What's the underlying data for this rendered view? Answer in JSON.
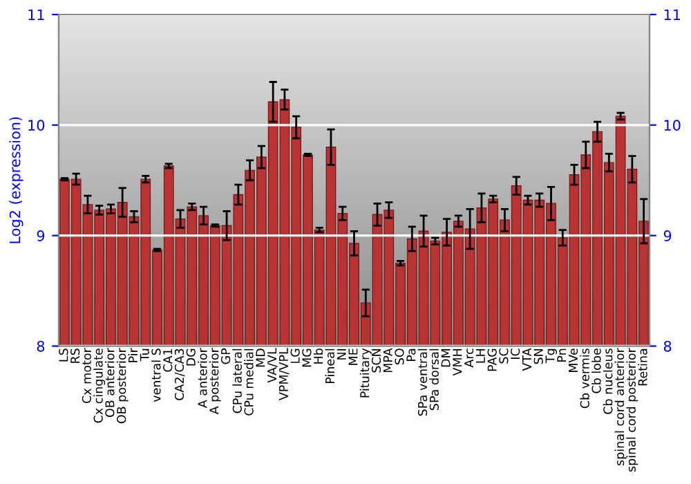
{
  "chart_data": {
    "type": "bar",
    "ylabel": "Log2 (expression)",
    "categories": [
      "LS",
      "RS",
      "Cx motor",
      "Cx cingulate",
      "OB anterior",
      "OB posterior",
      "Pir",
      "Tu",
      "ventral S",
      "CA1",
      "CA2/CA3",
      "DG",
      "A anterior",
      "A posterior",
      "GP",
      "CPu lateral",
      "CPu medial",
      "MD",
      "VA/VL",
      "VPM/VPL",
      "LG",
      "MG",
      "Hb",
      "Pineal",
      "NI",
      "ME",
      "Pituitary",
      "SCN",
      "MPA",
      "SO",
      "Pa",
      "SPa ventral",
      "SPa dorsal",
      "DM",
      "VMH",
      "Arc",
      "LH",
      "PAG",
      "SC",
      "IC",
      "VTA",
      "SN",
      "Tg",
      "Pn",
      "MVe",
      "Cb vermis",
      "Cb lobe",
      "Cb nucleus",
      "spinal cord anterior",
      "spinal cord posterior",
      "Retina"
    ],
    "series": [
      {
        "color": "#b83434",
        "values": [
          9.51,
          9.51,
          9.28,
          9.23,
          9.24,
          9.3,
          9.17,
          9.51,
          8.87,
          9.63,
          9.15,
          9.26,
          9.18,
          9.09,
          9.09,
          9.37,
          9.59,
          9.71,
          10.21,
          10.23,
          9.98,
          9.73,
          9.05,
          9.8,
          9.2,
          8.93,
          8.39,
          9.19,
          9.23,
          8.75,
          8.97,
          9.04,
          8.95,
          9.03,
          9.13,
          9.06,
          9.25,
          9.33,
          9.14,
          9.45,
          9.32,
          9.32,
          9.29,
          8.98,
          9.55,
          9.73,
          9.94,
          9.66,
          10.08,
          9.6,
          9.13
        ],
        "errors": [
          0.01,
          0.05,
          0.08,
          0.04,
          0.04,
          0.13,
          0.05,
          0.03,
          0.01,
          0.02,
          0.08,
          0.03,
          0.08,
          0.01,
          0.13,
          0.09,
          0.09,
          0.1,
          0.18,
          0.09,
          0.1,
          0.01,
          0.02,
          0.16,
          0.06,
          0.11,
          0.12,
          0.1,
          0.07,
          0.02,
          0.11,
          0.14,
          0.03,
          0.12,
          0.05,
          0.18,
          0.13,
          0.03,
          0.1,
          0.08,
          0.04,
          0.06,
          0.15,
          0.07,
          0.09,
          0.12,
          0.09,
          0.08,
          0.03,
          0.12,
          0.2
        ]
      }
    ],
    "ylim": [
      8,
      11
    ],
    "yticks": [
      8,
      9,
      10,
      11
    ],
    "y2lim": [
      8,
      11
    ],
    "y2ticks": [
      8,
      9,
      10,
      11
    ],
    "grid": "y"
  }
}
